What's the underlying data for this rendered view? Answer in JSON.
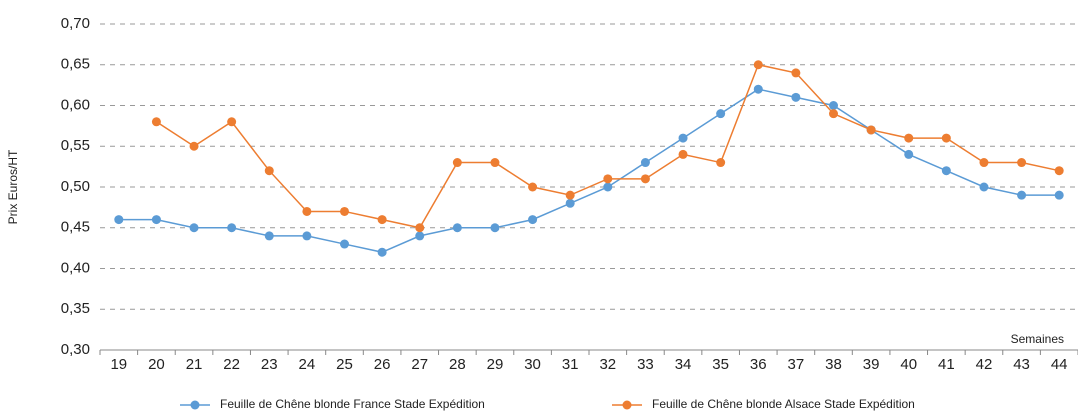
{
  "chart_data": {
    "type": "line",
    "y_label": "Prix Euros/HT",
    "x_label": "Semaines",
    "categories": [
      "19",
      "20",
      "21",
      "22",
      "23",
      "24",
      "25",
      "26",
      "27",
      "28",
      "29",
      "30",
      "31",
      "32",
      "33",
      "34",
      "35",
      "36",
      "37",
      "38",
      "39",
      "40",
      "41",
      "42",
      "43",
      "44"
    ],
    "series": [
      {
        "name": "Feuille de Chêne blonde France Stade Expédition",
        "color": "#5b9bd5",
        "values": [
          0.46,
          0.46,
          0.45,
          0.45,
          0.44,
          0.44,
          0.43,
          0.42,
          0.44,
          0.45,
          0.45,
          0.46,
          0.48,
          0.5,
          0.53,
          0.56,
          0.59,
          0.62,
          0.61,
          0.6,
          0.57,
          0.54,
          0.52,
          0.5,
          0.49,
          0.49
        ]
      },
      {
        "name": "Feuille de Chêne blonde Alsace Stade Expédition",
        "color": "#ed7d31",
        "values": [
          null,
          0.58,
          0.55,
          0.58,
          0.52,
          0.47,
          0.47,
          0.46,
          0.45,
          0.53,
          0.53,
          0.5,
          0.49,
          0.51,
          0.51,
          0.54,
          0.53,
          0.65,
          0.64,
          0.59,
          0.57,
          0.56,
          0.56,
          0.53,
          0.53,
          0.52
        ]
      }
    ],
    "ylim": [
      0.3,
      0.7
    ],
    "yticks": [
      {
        "value": 0.3,
        "label": "0,30"
      },
      {
        "value": 0.35,
        "label": "0,35"
      },
      {
        "value": 0.4,
        "label": "0,40"
      },
      {
        "value": 0.45,
        "label": "0,45"
      },
      {
        "value": 0.5,
        "label": "0,50"
      },
      {
        "value": 0.55,
        "label": "0,55"
      },
      {
        "value": 0.6,
        "label": "0,60"
      },
      {
        "value": 0.65,
        "label": "0,65"
      },
      {
        "value": 0.7,
        "label": "0,70"
      }
    ],
    "grid": true,
    "legend": "bottom"
  }
}
